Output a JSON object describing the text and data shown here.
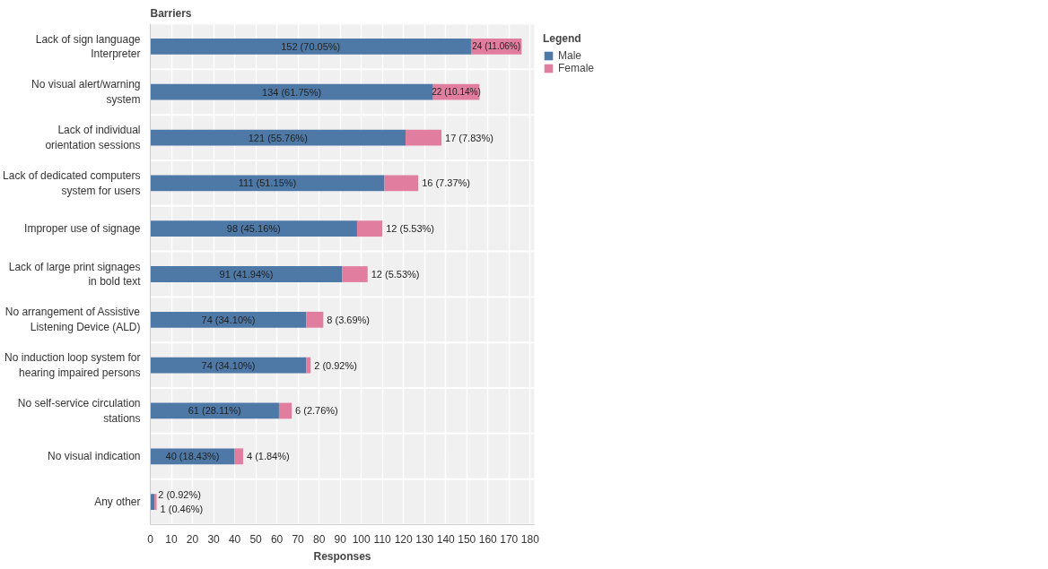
{
  "chart_data": {
    "type": "bar",
    "orientation": "horizontal",
    "stacked": true,
    "ylabel": "Barriers",
    "xlabel": "Responses",
    "legend_title": "Legend",
    "legend": "top right",
    "categories": [
      "Lack of sign language Interpreter",
      "No visual alert/warning system",
      "Lack of individual orientation sessions",
      "Lack of dedicated computers system for users",
      "Improper use of signage",
      "Lack of large print signages in bold text",
      "No arrangement of Assistive Listening Device (ALD)",
      "No induction loop system for hearing impaired persons",
      "No self-service circulation stations",
      "No visual indication",
      "Any other"
    ],
    "series": [
      {
        "name": "Male",
        "color": "#4e79a7",
        "values": [
          152,
          134,
          121,
          111,
          98,
          91,
          74,
          74,
          61,
          40,
          2
        ],
        "value_labels": [
          "152 (70.05%)",
          "134 (61.75%)",
          "121 (55.76%)",
          "111 (51.15%)",
          "98 (45.16%)",
          "91 (41.94%)",
          "74 (34.10%)",
          "74 (34.10%)",
          "61 (28.11%)",
          "40 (18.43%)",
          "2 (0.92%)"
        ]
      },
      {
        "name": "Female",
        "color": "#e17ea0",
        "values": [
          24,
          22,
          17,
          16,
          12,
          12,
          8,
          2,
          6,
          4,
          1
        ],
        "value_labels": [
          "24 (11.06%)",
          "22 (10.14%)",
          "17 (7.83%)",
          "16 (7.37%)",
          "12 (5.53%)",
          "12 (5.53%)",
          "8 (3.69%)",
          "2 (0.92%)",
          "6 (2.76%)",
          "4 (1.84%)",
          "1 (0.46%)"
        ]
      }
    ],
    "xlim": [
      0,
      182
    ],
    "xticks": [
      0,
      10,
      20,
      30,
      40,
      50,
      60,
      70,
      80,
      90,
      100,
      110,
      120,
      130,
      140,
      150,
      160,
      170,
      180
    ],
    "grid": "x"
  }
}
